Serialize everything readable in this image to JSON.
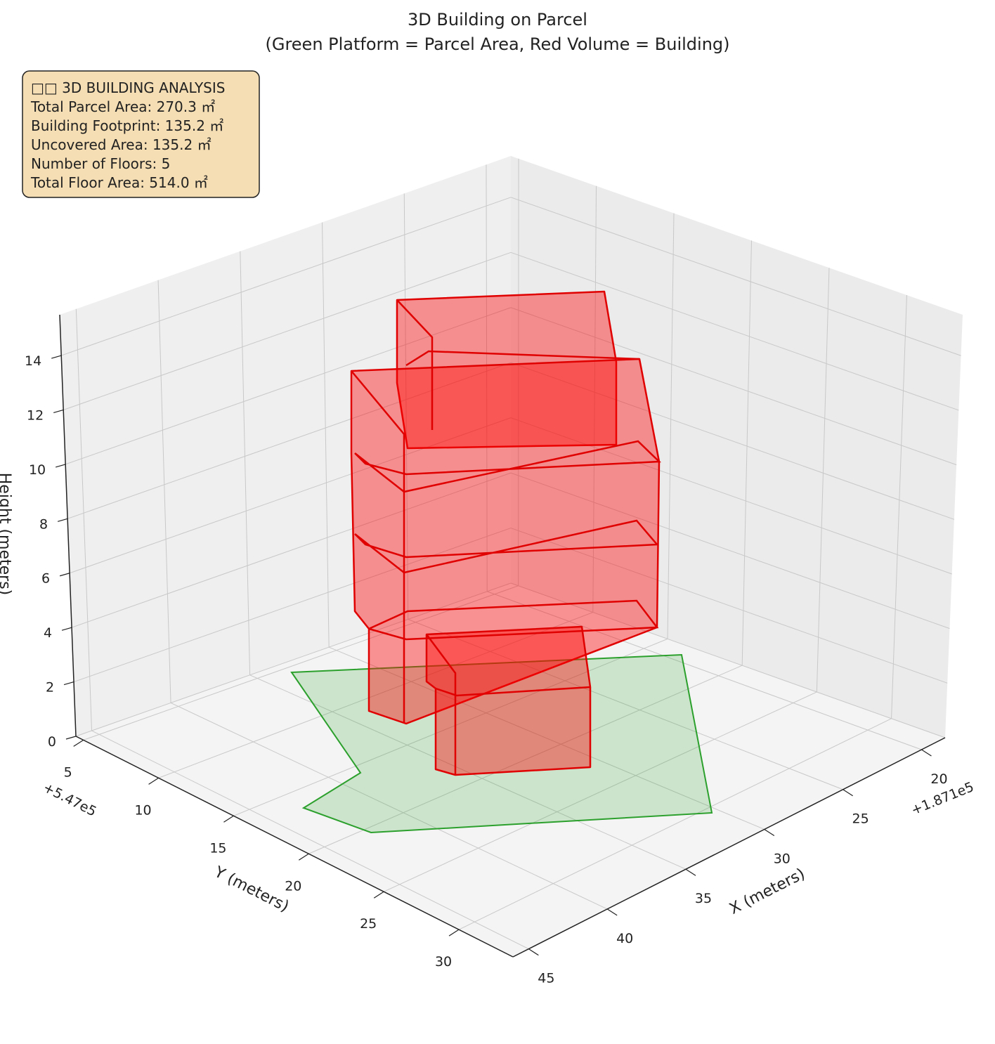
{
  "chart_data": {
    "type": "3d",
    "title": "3D Building on Parcel",
    "subtitle": "(Green Platform = Parcel Area, Red Volume = Building)",
    "xlabel": "X (meters)",
    "ylabel": "Y (meters)",
    "zlabel": "Height (meters)",
    "x_offset": "+1.871e5",
    "y_offset": "+5.47e5",
    "xlim": [
      18.5,
      46
    ],
    "xticks": [
      20,
      25,
      30,
      35,
      40,
      45
    ],
    "ylim": [
      4.5,
      33.6
    ],
    "yticks": [
      5,
      10,
      15,
      20,
      25,
      30
    ],
    "zlim": [
      0,
      15.5
    ],
    "zticks": [
      0,
      2,
      4,
      6,
      8,
      10,
      12,
      14
    ],
    "grid": true,
    "parcel_color": "#2ca02c",
    "building_color": "#ff0000",
    "annotation": [
      "□□ 3D BUILDING ANALYSIS",
      "Total Parcel Area: 270.3 ㎡",
      "Building Footprint: 135.2 ㎡",
      "Uncovered Area: 135.2 ㎡",
      "Number of Floors: 5",
      "Total Floor Area: 514.0 ㎡"
    ]
  }
}
